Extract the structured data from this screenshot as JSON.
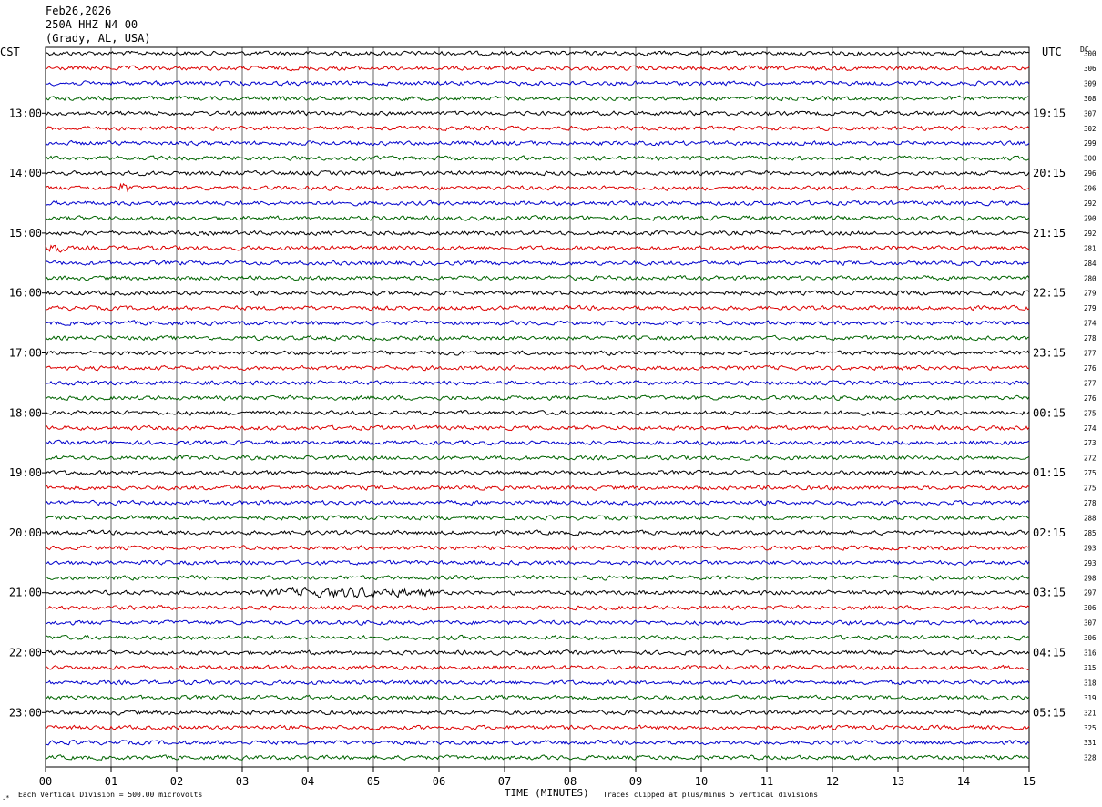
{
  "header": {
    "date": "Feb26,2026",
    "station": "250A HHZ N4 00",
    "location": "(Grady, AL, USA)"
  },
  "left_timezone": "CST",
  "right_timezone": "UTC",
  "dc_label": "DC",
  "footer": {
    "scale_note": "Each Vertical Division =  500.00 microvolts",
    "xlabel": "TIME (MINUTES)",
    "clip_note": "Traces clipped at plus/minus 5 vertical divisions"
  },
  "colors": {
    "trace_cycle": [
      "#000000",
      "#dd0000",
      "#0000cc",
      "#006400"
    ],
    "grid": "#000000",
    "text": "#000000"
  },
  "chart_data": {
    "type": "line",
    "title": "",
    "xlabel": "TIME (MINUTES)",
    "ylabel": "",
    "xlim": [
      0,
      15
    ],
    "x_ticks": [
      "00",
      "01",
      "02",
      "03",
      "04",
      "05",
      "06",
      "07",
      "08",
      "09",
      "10",
      "11",
      "12",
      "13",
      "14",
      "15"
    ],
    "grid": true,
    "legend": "none",
    "left_hour_labels": [
      "13:00",
      "14:00",
      "15:00",
      "16:00",
      "17:00",
      "18:00",
      "19:00",
      "20:00",
      "21:00",
      "22:00",
      "23:00"
    ],
    "right_hour_labels": [
      "19:15",
      "20:15",
      "21:15",
      "22:15",
      "23:15",
      "00:15",
      "01:15",
      "02:15",
      "03:15",
      "04:15",
      "05:15"
    ],
    "dc_offsets": [
      "300",
      "306",
      "309",
      "308",
      "307",
      "302",
      "299",
      "300",
      "296",
      "296",
      "292",
      "290",
      "292",
      "281",
      "284",
      "280",
      "279",
      "279",
      "274",
      "278",
      "277",
      "276",
      "277",
      "276",
      "275",
      "274",
      "273",
      "272",
      "275",
      "275",
      "278",
      "288",
      "285",
      "293",
      "293",
      "298",
      "297",
      "306",
      "307",
      "306",
      "316",
      "315",
      "318",
      "319",
      "321",
      "325",
      "331",
      "328"
    ],
    "events": [
      {
        "trace": 9,
        "start_min": 1.1,
        "end_min": 1.3,
        "amplitude": 2.2
      },
      {
        "trace": 13,
        "start_min": 0.0,
        "end_min": 0.3,
        "amplitude": 1.8
      },
      {
        "trace": 36,
        "start_min": 3.3,
        "end_min": 6.0,
        "amplitude": 1.6
      }
    ]
  }
}
